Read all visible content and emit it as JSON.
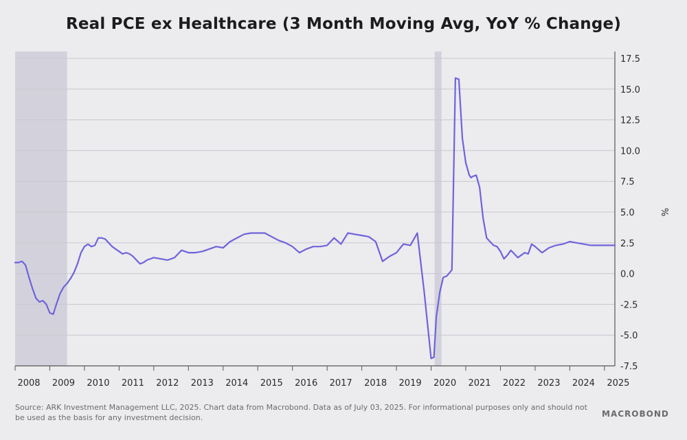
{
  "chart_data": {
    "type": "line",
    "title": "Real PCE ex Healthcare (3 Month Moving Avg, YoY % Change)",
    "ylabel": "%",
    "xlabel": "",
    "ylim": [
      -7.5,
      17.5
    ],
    "yticks": [
      "17.5",
      "15.0",
      "12.5",
      "10.0",
      "7.5",
      "5.0",
      "2.5",
      "0.0",
      "-2.5",
      "-5.0",
      "-7.5"
    ],
    "xticks": [
      "2008",
      "2009",
      "2010",
      "2011",
      "2012",
      "2013",
      "2014",
      "2015",
      "2016",
      "2017",
      "2018",
      "2019",
      "2020",
      "2021",
      "2022",
      "2023",
      "2024",
      "2025"
    ],
    "grid": true,
    "line_color": "#6e63db",
    "shade_color": "#d3d2dc",
    "recession_shading": [
      {
        "start": 2008.0,
        "end": 2009.5
      },
      {
        "start": 2020.1,
        "end": 2020.3
      }
    ],
    "series": [
      {
        "x": [
          2008.0,
          2008.1,
          2008.2,
          2008.3,
          2008.4,
          2008.5,
          2008.6,
          2008.7,
          2008.8,
          2008.9,
          2009.0,
          2009.1,
          2009.2,
          2009.3,
          2009.4,
          2009.5,
          2009.6,
          2009.7,
          2009.8,
          2009.9,
          2010.0,
          2010.1,
          2010.2,
          2010.3,
          2010.4,
          2010.5,
          2010.6,
          2010.7,
          2010.8,
          2010.9,
          2011.0,
          2011.1,
          2011.2,
          2011.3,
          2011.4,
          2011.5,
          2011.6,
          2011.7,
          2011.8,
          2011.9,
          2012.0,
          2012.2,
          2012.4,
          2012.6,
          2012.8,
          2013.0,
          2013.2,
          2013.4,
          2013.6,
          2013.8,
          2014.0,
          2014.2,
          2014.4,
          2014.6,
          2014.8,
          2015.0,
          2015.2,
          2015.4,
          2015.6,
          2015.8,
          2016.0,
          2016.2,
          2016.4,
          2016.6,
          2016.8,
          2017.0,
          2017.2,
          2017.4,
          2017.6,
          2017.8,
          2018.0,
          2018.2,
          2018.4,
          2018.6,
          2018.8,
          2019.0,
          2019.2,
          2019.4,
          2019.6,
          2019.8,
          2020.0,
          2020.08,
          2020.15,
          2020.25,
          2020.35,
          2020.45,
          2020.6,
          2020.7,
          2020.8,
          2020.9,
          2021.0,
          2021.1,
          2021.15,
          2021.2,
          2021.3,
          2021.4,
          2021.5,
          2021.6,
          2021.7,
          2021.8,
          2021.9,
          2022.0,
          2022.1,
          2022.2,
          2022.3,
          2022.4,
          2022.5,
          2022.6,
          2022.7,
          2022.8,
          2022.9,
          2023.0,
          2023.2,
          2023.4,
          2023.6,
          2023.8,
          2024.0,
          2024.2,
          2024.4,
          2024.6,
          2024.8,
          2025.0,
          2025.2,
          2025.3
        ],
        "y": [
          0.9,
          0.9,
          1.0,
          0.7,
          -0.3,
          -1.2,
          -2.0,
          -2.3,
          -2.2,
          -2.5,
          -3.2,
          -3.3,
          -2.4,
          -1.6,
          -1.1,
          -0.8,
          -0.4,
          0.1,
          0.8,
          1.7,
          2.2,
          2.4,
          2.2,
          2.3,
          2.9,
          2.9,
          2.8,
          2.5,
          2.2,
          2.0,
          1.8,
          1.6,
          1.7,
          1.6,
          1.4,
          1.1,
          0.8,
          0.9,
          1.1,
          1.2,
          1.3,
          1.2,
          1.1,
          1.3,
          1.9,
          1.7,
          1.7,
          1.8,
          2.0,
          2.2,
          2.1,
          2.6,
          2.9,
          3.2,
          3.3,
          3.3,
          3.3,
          3.0,
          2.7,
          2.5,
          2.2,
          1.7,
          2.0,
          2.2,
          2.2,
          2.3,
          2.9,
          2.4,
          3.3,
          3.2,
          3.1,
          3.0,
          2.6,
          1.0,
          1.4,
          1.7,
          2.4,
          2.3,
          3.3,
          -1.5,
          -6.9,
          -6.8,
          -3.5,
          -1.5,
          -0.3,
          -0.2,
          0.3,
          15.9,
          15.8,
          11.0,
          9.0,
          8.0,
          7.8,
          7.9,
          8.0,
          7.0,
          4.5,
          2.9,
          2.6,
          2.3,
          2.2,
          1.8,
          1.2,
          1.5,
          1.9,
          1.6,
          1.3,
          1.5,
          1.7,
          1.6,
          2.4,
          2.2,
          1.7,
          2.1,
          2.3,
          2.4,
          2.6,
          2.5,
          2.4,
          2.3,
          2.3,
          2.3,
          2.3,
          2.3
        ]
      }
    ]
  },
  "footer": {
    "source": "Source: ARK Investment Management LLC, 2025. Chart data from Macrobond. Data as of July 03, 2025. For informational purposes only and should not be used as the basis for any investment decision.",
    "logo_text": "MACROBOND"
  }
}
